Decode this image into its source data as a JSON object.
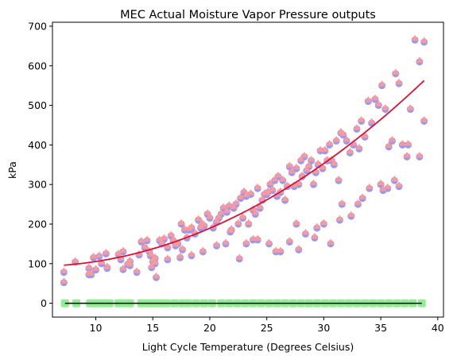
{
  "chart_data": {
    "type": "scatter",
    "title": "MEC Actual Moisture Vapor Pressure outputs",
    "xlabel": "Light Cycle Temperature (Degrees Celsius)",
    "ylabel": "kPa",
    "xlim": [
      6.2,
      40.5
    ],
    "ylim": [
      -35,
      710
    ],
    "xticks": [
      10,
      15,
      20,
      25,
      30,
      35,
      40
    ],
    "yticks": [
      0,
      100,
      200,
      300,
      400,
      500,
      600,
      700
    ],
    "grid": false,
    "colors": {
      "points_back": "#9999ee",
      "points_front": "#ff9999",
      "fit_line": "#dd1133",
      "zero_markers": "#90ee90",
      "zero_line": "#000000"
    },
    "fit_curve": {
      "x_range": [
        7.2,
        38.8
      ],
      "coefficients": [
        100.7,
        -3.5,
        0.397
      ]
    },
    "zero_series": {
      "y": 0,
      "x": [
        7.3,
        8.3,
        9.5,
        10.0,
        10.3,
        10.8,
        11.2,
        12.0,
        12.3,
        12.8,
        13.0,
        14.0,
        14.4,
        14.9,
        15.3,
        15.8,
        16.2,
        16.9,
        17.6,
        18.1,
        18.8,
        19.5,
        20.2,
        21.0,
        21.7,
        22.4,
        23.1,
        23.8,
        24.5,
        25.2,
        25.9,
        26.6,
        27.3,
        28.0,
        28.7,
        29.4,
        30.1,
        30.8,
        31.5,
        32.2,
        32.9,
        33.6,
        34.3,
        35.0,
        35.7,
        36.4,
        37.1,
        37.8,
        38.6
      ]
    },
    "points": {
      "x": [
        7.2,
        7.2,
        8.2,
        9.4,
        9.4,
        9.8,
        10.0,
        10.3,
        10.5,
        10.9,
        11.0,
        12.0,
        12.2,
        12.4,
        12.8,
        13.0,
        13.0,
        13.8,
        14.0,
        14.3,
        14.5,
        14.7,
        14.8,
        15.0,
        15.2,
        15.3,
        15.6,
        15.8,
        16.0,
        16.3,
        16.6,
        16.8,
        17.0,
        17.2,
        17.5,
        17.6,
        17.8,
        18.0,
        18.2,
        18.4,
        18.7,
        19.0,
        19.2,
        19.3,
        19.5,
        19.8,
        20.0,
        20.3,
        20.6,
        20.8,
        21.0,
        21.2,
        21.5,
        21.7,
        21.9,
        22.1,
        22.3,
        22.5,
        22.7,
        22.9,
        23.0,
        23.2,
        23.4,
        23.6,
        23.8,
        24.0,
        24.2,
        24.4,
        24.6,
        24.8,
        25.0,
        25.1,
        25.3,
        25.5,
        25.7,
        25.9,
        26.0,
        26.2,
        26.4,
        26.6,
        26.8,
        27.0,
        27.2,
        27.4,
        27.6,
        27.8,
        28.0,
        28.1,
        28.3,
        28.5,
        28.7,
        28.9,
        29.1,
        29.3,
        29.5,
        29.7,
        29.9,
        30.1,
        30.3,
        30.5,
        30.7,
        30.9,
        31.1,
        31.3,
        31.5,
        31.7,
        32.0,
        32.3,
        32.6,
        32.9,
        33.1,
        33.3,
        33.6,
        33.9,
        34.2,
        34.5,
        34.8,
        35.1,
        35.4,
        35.7,
        36.0,
        36.3,
        36.6,
        36.9,
        37.3,
        37.6,
        38.0,
        38.4,
        38.8,
        9.6,
        11.0,
        12.4,
        13.6,
        14.9,
        15.2,
        16.3,
        17.4,
        18.4,
        19.4,
        20.6,
        21.4,
        22.6,
        23.2,
        24.2,
        25.2,
        26.2,
        27.0,
        27.8,
        28.4,
        29.2,
        30.0,
        30.6,
        31.4,
        32.4,
        33.0,
        34.0,
        35.0,
        35.6,
        36.2,
        37.4,
        38.4,
        38.8,
        21.8,
        23.8,
        25.8,
        27.6,
        29.4,
        31.6,
        33.4,
        35.2,
        36.6
      ],
      "y": [
        78,
        52,
        104,
        88,
        72,
        115,
        84,
        118,
        100,
        125,
        88,
        123,
        110,
        130,
        98,
        95,
        105,
        122,
        155,
        140,
        158,
        130,
        120,
        105,
        113,
        65,
        158,
        150,
        162,
        140,
        170,
        158,
        145,
        150,
        200,
        135,
        185,
        165,
        185,
        190,
        175,
        210,
        190,
        200,
        195,
        225,
        215,
        190,
        205,
        215,
        225,
        240,
        230,
        245,
        185,
        240,
        250,
        200,
        265,
        215,
        280,
        270,
        200,
        275,
        235,
        225,
        290,
        240,
        260,
        275,
        275,
        280,
        300,
        285,
        310,
        270,
        320,
        280,
        310,
        260,
        295,
        345,
        330,
        295,
        340,
        300,
        360,
        320,
        370,
        335,
        345,
        360,
        300,
        330,
        350,
        385,
        340,
        385,
        360,
        400,
        360,
        350,
        410,
        310,
        430,
        425,
        410,
        380,
        400,
        440,
        390,
        460,
        420,
        510,
        455,
        515,
        500,
        550,
        490,
        395,
        410,
        580,
        555,
        400,
        370,
        490,
        665,
        610,
        660,
        72,
        90,
        85,
        78,
        90,
        100,
        110,
        115,
        120,
        130,
        145,
        150,
        112,
        150,
        160,
        150,
        130,
        155,
        135,
        175,
        165,
        200,
        150,
        210,
        220,
        250,
        290,
        300,
        290,
        310,
        400,
        370,
        460,
        180,
        160,
        130,
        200,
        190,
        250,
        265,
        285,
        295
      ]
    }
  }
}
